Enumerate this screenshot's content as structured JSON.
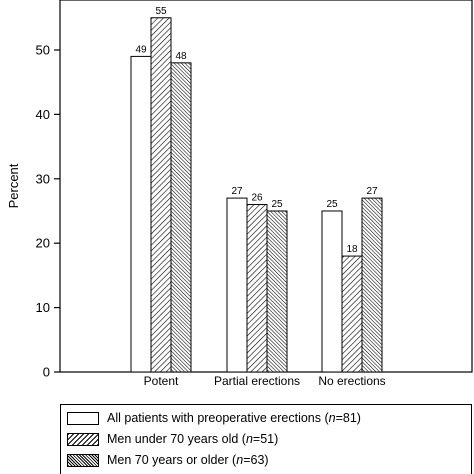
{
  "chart_data": {
    "type": "bar",
    "ylabel": "Percent",
    "ylim": [
      0,
      59
    ],
    "yticks": [
      "0",
      "10",
      "20",
      "30",
      "40",
      "50"
    ],
    "categories": [
      "Potent",
      "Partial erections",
      "No erections"
    ],
    "series": [
      {
        "name_pre": "All patients with preoperative erections (",
        "name_n": "n",
        "name_post": "=81)",
        "values": [
          49,
          27,
          25
        ]
      },
      {
        "name_pre": "Men under 70 years old (",
        "name_n": "n",
        "name_post": "=51)",
        "values": [
          55,
          26,
          18
        ]
      },
      {
        "name_pre": "Men 70 years or older (",
        "name_n": "n",
        "name_post": "=63)",
        "values": [
          48,
          25,
          27
        ]
      }
    ],
    "data_labels": [
      [
        "49",
        "27",
        "25"
      ],
      [
        "55",
        "26",
        "18"
      ],
      [
        "48",
        "25",
        "27"
      ]
    ],
    "legend_position": "bottom"
  }
}
